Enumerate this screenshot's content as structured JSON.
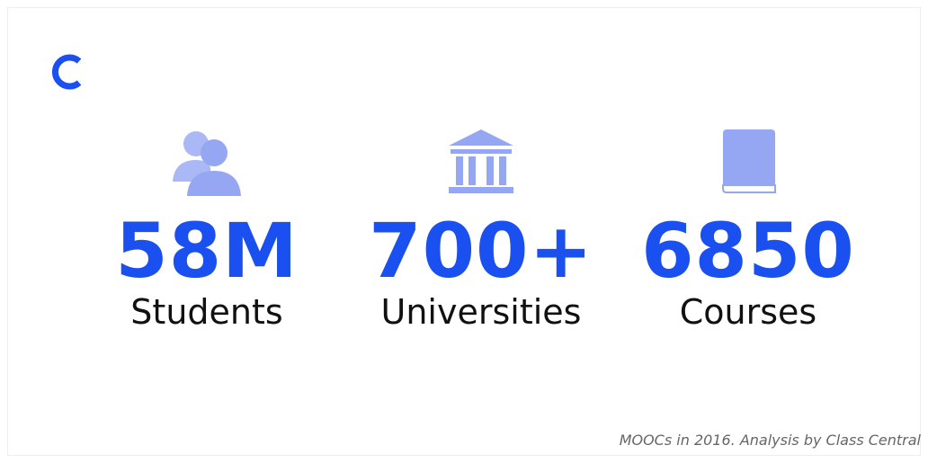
{
  "stats": [
    {
      "value": "58M",
      "label": "Students"
    },
    {
      "value": "700+",
      "label": "Universities"
    },
    {
      "value": "6850",
      "label": "Courses"
    }
  ],
  "footer": "MOOCs in 2016. Analysis by Class Central"
}
